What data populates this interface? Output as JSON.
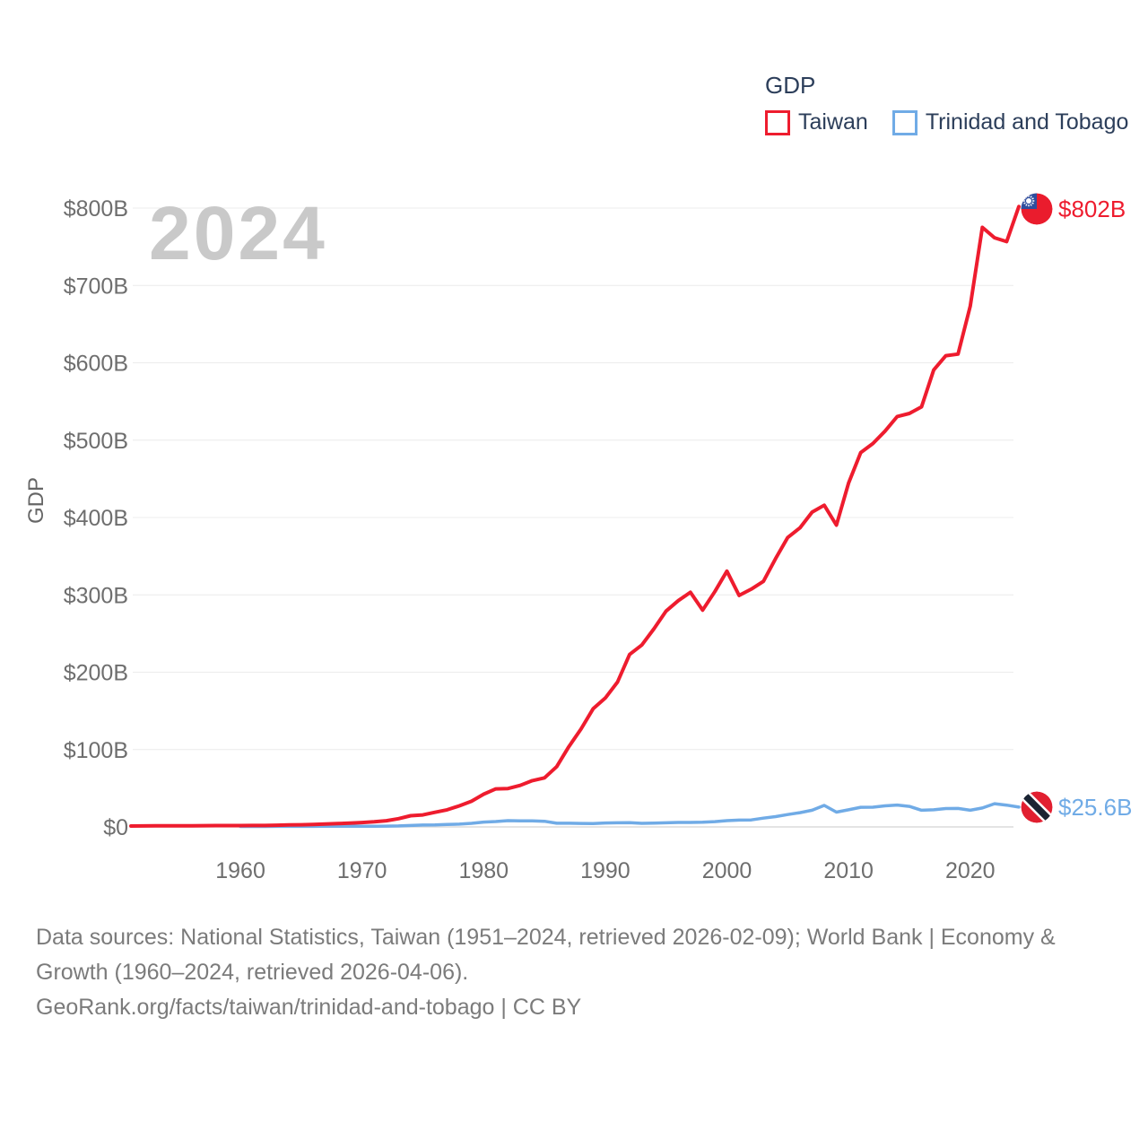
{
  "watermark": "2024",
  "legend": {
    "title": "GDP",
    "items": [
      {
        "label": "Taiwan",
        "color": "#ee1c2e"
      },
      {
        "label": "Trinidad and Tobago",
        "color": "#70abe6"
      }
    ]
  },
  "y_axis_title": "GDP",
  "end_labels": {
    "taiwan": "$802B",
    "trinidad": "$25.6B"
  },
  "footer": {
    "line1": "Data sources: National Statistics, Taiwan (1951–2024, retrieved 2026-02-09); World Bank | Economy &",
    "line2": "Growth (1960–2024, retrieved 2026-04-06).",
    "line3": "GeoRank.org/facts/taiwan/trinidad-and-tobago | CC BY"
  },
  "colors": {
    "taiwan": "#ee1c2e",
    "trinidad": "#70abe6",
    "grid": "#ececec",
    "axis": "#dcdcdc",
    "tick_text": "#6e6e6e",
    "legend_text": "#2c3e5a",
    "watermark": "#c9c9c9",
    "footer_text": "#7b7b7b"
  },
  "chart_data": {
    "type": "line",
    "title": "GDP",
    "ylabel": "GDP",
    "grid": true,
    "legend_position": "top-right",
    "xlim": [
      1951,
      2024
    ],
    "ylim": [
      0,
      800
    ],
    "y_ticks": [
      {
        "v": 0,
        "label": "$0"
      },
      {
        "v": 100,
        "label": "$100B"
      },
      {
        "v": 200,
        "label": "$200B"
      },
      {
        "v": 300,
        "label": "$300B"
      },
      {
        "v": 400,
        "label": "$400B"
      },
      {
        "v": 500,
        "label": "$500B"
      },
      {
        "v": 600,
        "label": "$600B"
      },
      {
        "v": 700,
        "label": "$700B"
      },
      {
        "v": 800,
        "label": "$800B"
      }
    ],
    "x_ticks": [
      1960,
      1970,
      1980,
      1990,
      2000,
      2010,
      2020
    ],
    "unit": "USD billions",
    "series": [
      {
        "name": "Taiwan",
        "color": "#ee1c2e",
        "start_year": 1951,
        "end_year": 2024,
        "end_value_label": "$802B",
        "values": [
          1.2,
          1.3,
          1.4,
          1.4,
          1.5,
          1.5,
          1.6,
          1.7,
          1.7,
          1.7,
          1.8,
          1.9,
          2.2,
          2.5,
          2.8,
          3.2,
          3.7,
          4.3,
          4.9,
          5.7,
          6.6,
          8.0,
          10.7,
          14.5,
          15.5,
          18.9,
          22.2,
          27.3,
          33.2,
          42.3,
          49.2,
          49.6,
          53.7,
          59.8,
          63.4,
          77.9,
          103.6,
          126.5,
          152.7,
          166.6,
          187.3,
          222.9,
          235.1,
          256.2,
          279.1,
          292.5,
          303.3,
          280.2,
          304.1,
          330.7,
          299.3,
          307.4,
          317.4,
          346.9,
          374.1,
          386.5,
          406.9,
          415.9,
          390.1,
          444.3,
          483.9,
          495.6,
          511.6,
          530.5,
          534.5,
          543.1,
          590.8,
          609.2,
          611.3,
          673.2,
          775.1,
          761.6,
          756.6,
          802.0
        ]
      },
      {
        "name": "Trinidad and Tobago",
        "color": "#70abe6",
        "start_year": 1960,
        "end_year": 2024,
        "end_value_label": "$25.6B",
        "values": [
          0.54,
          0.58,
          0.61,
          0.65,
          0.68,
          0.7,
          0.72,
          0.76,
          0.79,
          0.79,
          0.82,
          0.9,
          1.03,
          1.31,
          1.84,
          2.44,
          2.5,
          3.14,
          3.56,
          4.6,
          6.24,
          6.99,
          8.14,
          7.76,
          7.77,
          7.35,
          4.79,
          4.8,
          4.48,
          4.32,
          5.07,
          5.31,
          5.44,
          4.58,
          4.95,
          5.33,
          5.76,
          5.74,
          6.05,
          6.8,
          8.15,
          8.83,
          9.01,
          11.38,
          13.28,
          16.05,
          18.42,
          21.54,
          27.87,
          19.17,
          22.16,
          25.38,
          25.49,
          27.26,
          28.32,
          26.57,
          21.56,
          22.2,
          23.81,
          23.84,
          21.59,
          24.46,
          30.05,
          28.14,
          25.6
        ]
      }
    ]
  }
}
